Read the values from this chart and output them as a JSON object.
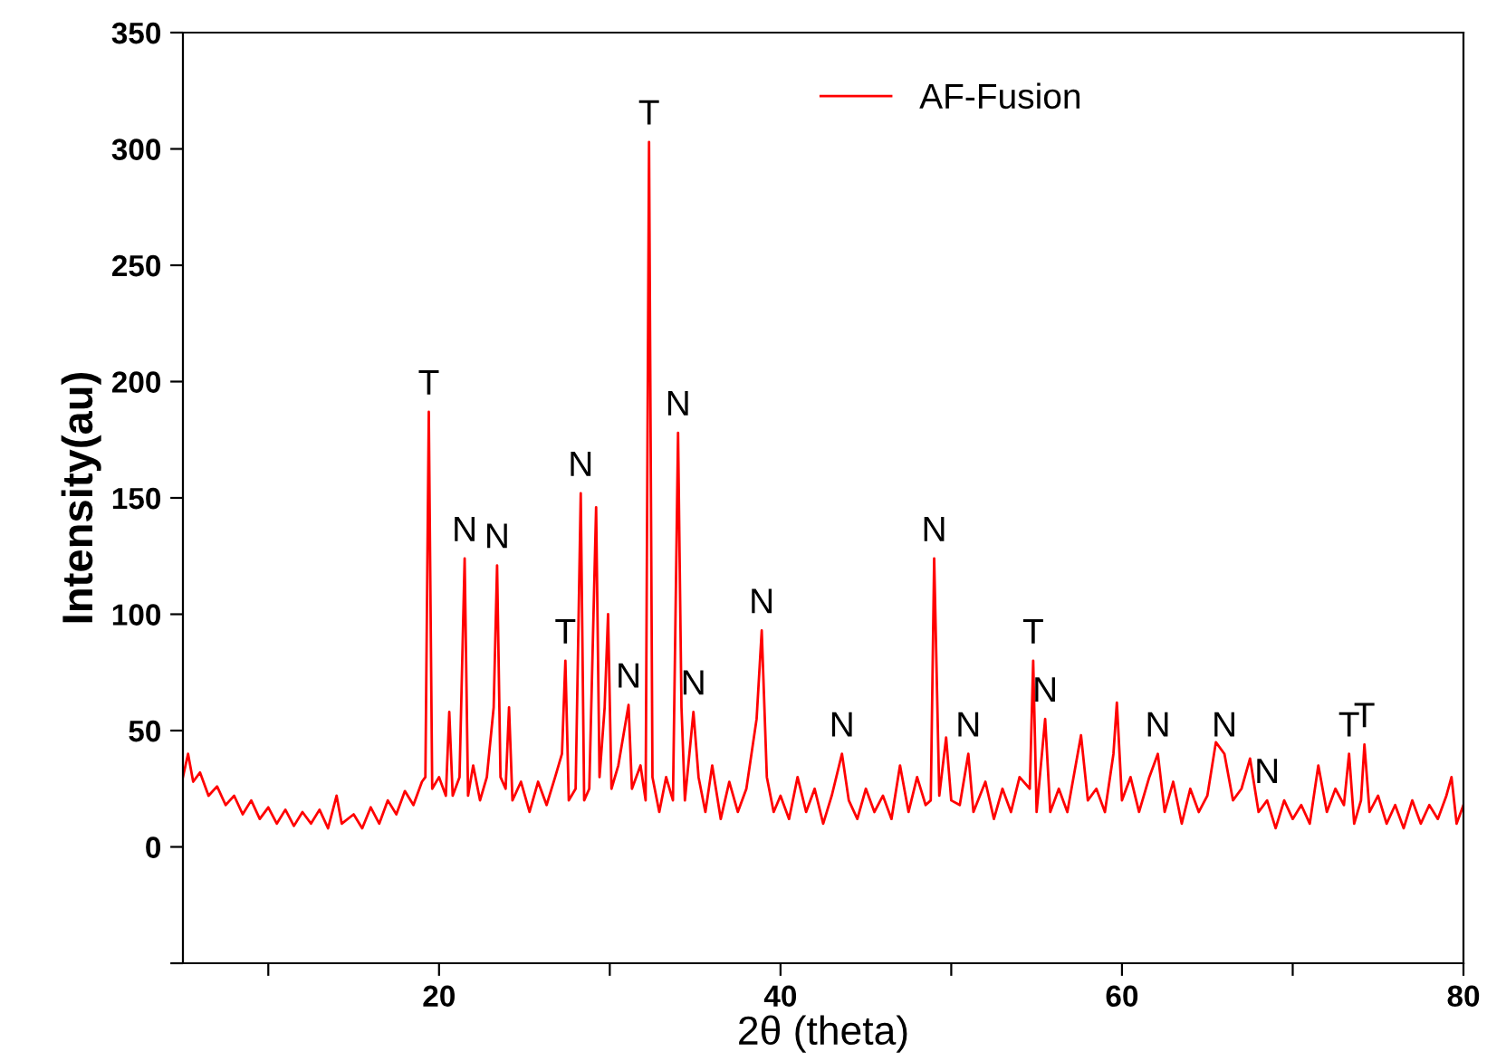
{
  "chart_data": {
    "type": "line",
    "xlabel": "2θ (theta)",
    "ylabel": "Intensity(au)",
    "xlim": [
      5,
      80
    ],
    "ylim": [
      -50,
      350
    ],
    "xticks": [
      {
        "value": 10,
        "label": null
      },
      20,
      {
        "value": 30,
        "label": null
      },
      40,
      {
        "value": 50,
        "label": null
      },
      60,
      {
        "value": 70,
        "label": null
      },
      80
    ],
    "yticks": [
      {
        "value": -50,
        "label": null
      },
      0,
      50,
      100,
      150,
      200,
      250,
      300,
      350
    ],
    "grid": false,
    "legend": "top",
    "marker": "none",
    "line_style": "solid",
    "series": [
      {
        "name": "AF-Fusion",
        "color": "#ff0000",
        "x": [
          5,
          5.3,
          5.6,
          6,
          6.5,
          7,
          7.5,
          8,
          8.5,
          9,
          9.5,
          10,
          10.5,
          11,
          11.5,
          12,
          12.5,
          13,
          13.5,
          14,
          14.3,
          15,
          15.5,
          16,
          16.5,
          17,
          17.5,
          18,
          18.5,
          19,
          19.2,
          19.4,
          19.6,
          20,
          20.4,
          20.6,
          20.8,
          21.2,
          21.5,
          21.7,
          22,
          22.4,
          22.8,
          23.2,
          23.4,
          23.6,
          23.9,
          24.1,
          24.3,
          24.8,
          25.3,
          25.8,
          26.3,
          26.8,
          27.2,
          27.4,
          27.6,
          28.0,
          28.3,
          28.5,
          28.8,
          29.2,
          29.4,
          29.7,
          29.9,
          30.1,
          30.5,
          31.1,
          31.3,
          31.8,
          32.1,
          32.3,
          32.5,
          32.9,
          33.3,
          33.7,
          34.0,
          34.2,
          34.4,
          34.9,
          35.2,
          35.6,
          36,
          36.5,
          37,
          37.5,
          38,
          38.6,
          38.9,
          39.2,
          39.6,
          40,
          40.5,
          41,
          41.5,
          42,
          42.5,
          43,
          43.6,
          44,
          44.5,
          45,
          45.5,
          46,
          46.5,
          47,
          47.5,
          48,
          48.5,
          48.8,
          49.0,
          49.3,
          49.7,
          50,
          50.5,
          51.0,
          51.3,
          52,
          52.5,
          53,
          53.5,
          54,
          54.6,
          54.8,
          55.0,
          55.5,
          55.8,
          56.3,
          56.8,
          57.6,
          58,
          58.5,
          59,
          59.5,
          59.7,
          60,
          60.5,
          61,
          61.6,
          62.1,
          62.5,
          63,
          63.5,
          64,
          64.5,
          65,
          65.5,
          66,
          66.5,
          67,
          67.5,
          68,
          68.5,
          69,
          69.5,
          70,
          70.5,
          71,
          71.5,
          72,
          72.5,
          73,
          73.3,
          73.6,
          74,
          74.2,
          74.5,
          75,
          75.5,
          76,
          76.5,
          77,
          77.5,
          78,
          78.5,
          79,
          79.3,
          79.6,
          80
        ],
        "values": [
          30,
          40,
          28,
          32,
          22,
          26,
          18,
          22,
          14,
          20,
          12,
          17,
          10,
          16,
          9,
          15,
          10,
          16,
          8,
          22,
          10,
          14,
          8,
          17,
          10,
          20,
          14,
          24,
          18,
          28,
          30,
          187,
          25,
          30,
          22,
          58,
          22,
          30,
          124,
          22,
          35,
          20,
          30,
          60,
          121,
          30,
          25,
          60,
          20,
          28,
          15,
          28,
          18,
          30,
          40,
          80,
          20,
          25,
          152,
          20,
          25,
          146,
          30,
          60,
          100,
          25,
          35,
          61,
          25,
          35,
          20,
          303,
          30,
          15,
          30,
          20,
          178,
          60,
          20,
          58,
          30,
          15,
          35,
          12,
          28,
          15,
          25,
          55,
          93,
          30,
          15,
          22,
          12,
          30,
          15,
          25,
          10,
          22,
          40,
          20,
          12,
          25,
          15,
          22,
          12,
          35,
          15,
          30,
          18,
          20,
          124,
          22,
          47,
          20,
          18,
          40,
          15,
          28,
          12,
          25,
          15,
          30,
          25,
          80,
          15,
          55,
          15,
          25,
          15,
          48,
          20,
          25,
          15,
          40,
          62,
          20,
          30,
          15,
          30,
          40,
          15,
          28,
          10,
          25,
          15,
          22,
          45,
          40,
          20,
          25,
          38,
          15,
          20,
          8,
          20,
          12,
          18,
          10,
          35,
          15,
          25,
          18,
          40,
          10,
          20,
          44,
          15,
          22,
          10,
          18,
          8,
          20,
          10,
          18,
          12,
          22,
          30,
          10,
          18
        ]
      }
    ],
    "annotations": [
      {
        "text": "T",
        "x": 19.4,
        "y": 187
      },
      {
        "text": "N",
        "x": 21.5,
        "y": 124
      },
      {
        "text": "N",
        "x": 23.4,
        "y": 121
      },
      {
        "text": "T",
        "x": 27.4,
        "y": 80
      },
      {
        "text": "N",
        "x": 28.3,
        "y": 152
      },
      {
        "text": "N",
        "x": 31.1,
        "y": 61
      },
      {
        "text": "T",
        "x": 32.3,
        "y": 303
      },
      {
        "text": "N",
        "x": 34.0,
        "y": 178
      },
      {
        "text": "N",
        "x": 34.9,
        "y": 58
      },
      {
        "text": "N",
        "x": 38.9,
        "y": 93
      },
      {
        "text": "N",
        "x": 43.6,
        "y": 40
      },
      {
        "text": "N",
        "x": 49.0,
        "y": 124
      },
      {
        "text": "N",
        "x": 51.0,
        "y": 40
      },
      {
        "text": "T",
        "x": 54.8,
        "y": 80
      },
      {
        "text": "N",
        "x": 55.5,
        "y": 55
      },
      {
        "text": "N",
        "x": 62.1,
        "y": 40
      },
      {
        "text": "N",
        "x": 66.0,
        "y": 40
      },
      {
        "text": "N",
        "x": 68.5,
        "y": 20
      },
      {
        "text": "T",
        "x": 73.3,
        "y": 40
      },
      {
        "text": "T",
        "x": 74.2,
        "y": 44
      }
    ]
  }
}
